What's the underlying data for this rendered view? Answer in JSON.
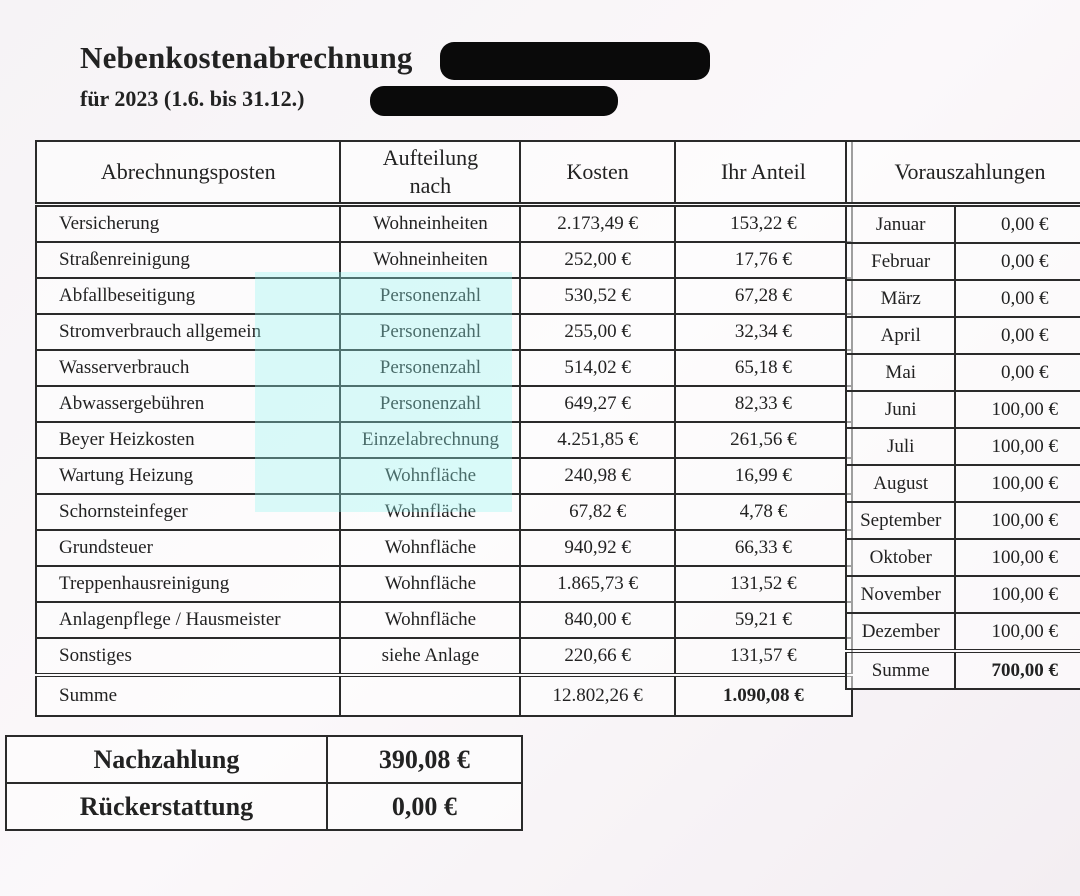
{
  "header": {
    "title": "Nebenkostenabrechnung",
    "subtitle": "für 2023 (1.6. bis 31.12.)"
  },
  "main_table": {
    "columns": [
      "Abrechnungsposten",
      "Aufteilung nach",
      "Kosten",
      "Ihr Anteil"
    ],
    "rows": [
      {
        "posten": "Versicherung",
        "aufteilung": "Wohneinheiten",
        "kosten": "2.173,49 €",
        "anteil": "153,22 €"
      },
      {
        "posten": "Straßenreinigung",
        "aufteilung": "Wohneinheiten",
        "kosten": "252,00 €",
        "anteil": "17,76 €"
      },
      {
        "posten": "Abfallbeseitigung",
        "aufteilung": "Personenzahl",
        "kosten": "530,52 €",
        "anteil": "67,28 €"
      },
      {
        "posten": "Stromverbrauch allgemein",
        "aufteilung": "Personenzahl",
        "kosten": "255,00 €",
        "anteil": "32,34 €"
      },
      {
        "posten": "Wasserverbrauch",
        "aufteilung": "Personenzahl",
        "kosten": "514,02 €",
        "anteil": "65,18 €"
      },
      {
        "posten": "Abwassergebühren",
        "aufteilung": "Personenzahl",
        "kosten": "649,27 €",
        "anteil": "82,33 €"
      },
      {
        "posten": "Beyer Heizkosten",
        "aufteilung": "Einzelabrechnung",
        "kosten": "4.251,85 €",
        "anteil": "261,56 €"
      },
      {
        "posten": "Wartung Heizung",
        "aufteilung": "Wohnfläche",
        "kosten": "240,98 €",
        "anteil": "16,99 €"
      },
      {
        "posten": "Schornsteinfeger",
        "aufteilung": "Wohnfläche",
        "kosten": "67,82 €",
        "anteil": "4,78 €"
      },
      {
        "posten": "Grundsteuer",
        "aufteilung": "Wohnfläche",
        "kosten": "940,92 €",
        "anteil": "66,33 €"
      },
      {
        "posten": "Treppenhausreinigung",
        "aufteilung": "Wohnfläche",
        "kosten": "1.865,73 €",
        "anteil": "131,52 €"
      },
      {
        "posten": "Anlagenpflege / Hausmeister",
        "aufteilung": "Wohnfläche",
        "kosten": "840,00 €",
        "anteil": "59,21 €"
      },
      {
        "posten": "Sonstiges",
        "aufteilung": "siehe Anlage",
        "kosten": "220,66 €",
        "anteil": "131,57 €"
      }
    ],
    "summe": {
      "label": "Summe",
      "kosten": "12.802,26 €",
      "anteil": "1.090,08 €"
    }
  },
  "vorauszahlungen": {
    "title": "Vorauszahlungen",
    "rows": [
      {
        "monat": "Januar",
        "betrag": "0,00 €"
      },
      {
        "monat": "Februar",
        "betrag": "0,00 €"
      },
      {
        "monat": "März",
        "betrag": "0,00 €"
      },
      {
        "monat": "April",
        "betrag": "0,00 €"
      },
      {
        "monat": "Mai",
        "betrag": "0,00 €"
      },
      {
        "monat": "Juni",
        "betrag": "100,00 €"
      },
      {
        "monat": "Juli",
        "betrag": "100,00 €"
      },
      {
        "monat": "August",
        "betrag": "100,00 €"
      },
      {
        "monat": "September",
        "betrag": "100,00 €"
      },
      {
        "monat": "Oktober",
        "betrag": "100,00 €"
      },
      {
        "monat": "November",
        "betrag": "100,00 €"
      },
      {
        "monat": "Dezember",
        "betrag": "100,00 €"
      }
    ],
    "summe": {
      "label": "Summe",
      "betrag": "700,00 €"
    }
  },
  "result": {
    "nachzahlung_label": "Nachzahlung",
    "nachzahlung": "390,08 €",
    "rueckerstattung_label": "Rückerstattung",
    "rueckerstattung": "0,00 €"
  },
  "colors": {
    "highlight": "#96f5f0",
    "redaction": "#0a0a0a"
  }
}
